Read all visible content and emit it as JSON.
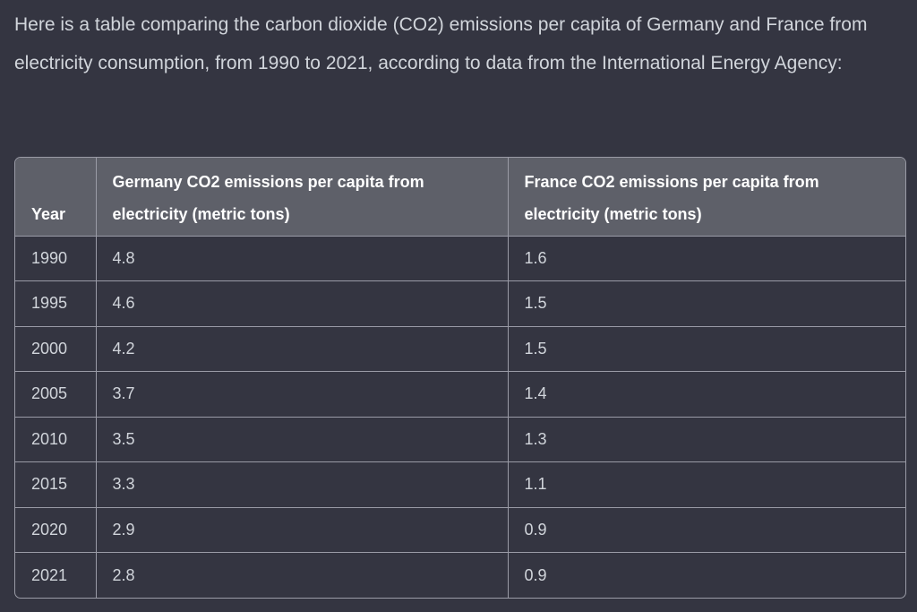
{
  "intro": "Here is a table comparing the carbon dioxide (CO2) emissions per capita of Germany and France from electricity consumption, from 1990 to 2021, according to data from the International Energy Agency:",
  "table": {
    "headers": [
      "Year",
      "Germany CO2 emissions per capita from electricity (metric tons)",
      "France CO2 emissions per capita from electricity (metric tons)"
    ],
    "rows": [
      [
        "1990",
        "4.8",
        "1.6"
      ],
      [
        "1995",
        "4.6",
        "1.5"
      ],
      [
        "2000",
        "4.2",
        "1.5"
      ],
      [
        "2005",
        "3.7",
        "1.4"
      ],
      [
        "2010",
        "3.5",
        "1.3"
      ],
      [
        "2015",
        "3.3",
        "1.1"
      ],
      [
        "2020",
        "2.9",
        "0.9"
      ],
      [
        "2021",
        "2.8",
        "0.9"
      ]
    ]
  },
  "colors": {
    "background": "#343541",
    "header_background": "#5e6069",
    "border": "#9a9ba6",
    "text": "#d1d5db"
  }
}
